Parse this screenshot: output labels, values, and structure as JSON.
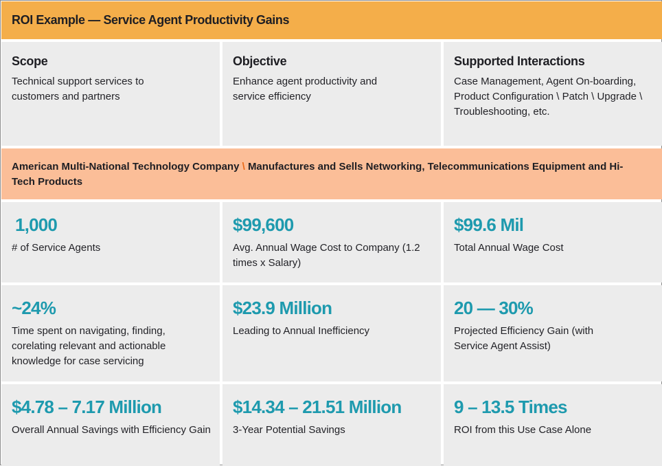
{
  "title": "ROI Example — Service Agent Productivity Gains",
  "overview": [
    {
      "heading": "Scope",
      "text": "Technical support services to customers and partners"
    },
    {
      "heading": "Objective",
      "text": "Enhance agent productivity and service efficiency"
    },
    {
      "heading": "Supported Interactions",
      "text": "Case Management, Agent On-boarding, Product Configuration \\ Patch \\ Upgrade \\ Troubleshooting, etc."
    }
  ],
  "company": {
    "part1": "American Multi-National Technology Company",
    "separator": "\\",
    "part2": "Manufactures and Sells Networking, Telecommunications Equipment and Hi-Tech Products",
    "separator_color": "#e86a1a"
  },
  "metrics": [
    {
      "value": "1,000",
      "label": "# of Service Agents"
    },
    {
      "value": "$99,600",
      "label": "Avg. Annual Wage Cost to Company (1.2 times x Salary)"
    },
    {
      "value": "$99.6 Mil",
      "label": "Total Annual Wage Cost"
    },
    {
      "value": "~24%",
      "label": "Time spent on navigating, finding, corelating relevant and actionable knowledge for case servicing"
    },
    {
      "value": "$23.9 Million",
      "label": "Leading to Annual Inefficiency"
    },
    {
      "value": "20 — 30%",
      "label": "Projected Efficiency Gain (with Service Agent Assist)"
    },
    {
      "value": "$4.78 – 7.17 Million",
      "label": "Overall Annual Savings with Efficiency Gain"
    },
    {
      "value": "$14.34 – 21.51 Million",
      "label": "3-Year Potential Savings"
    },
    {
      "value": "9 – 13.5 Times",
      "label": "ROI from this Use Case Alone"
    }
  ],
  "colors": {
    "title_bar": "#f4ae4a",
    "company_bar": "#fbbe98",
    "metric_value": "#1e9aae",
    "cell_bg": "#ececec"
  }
}
